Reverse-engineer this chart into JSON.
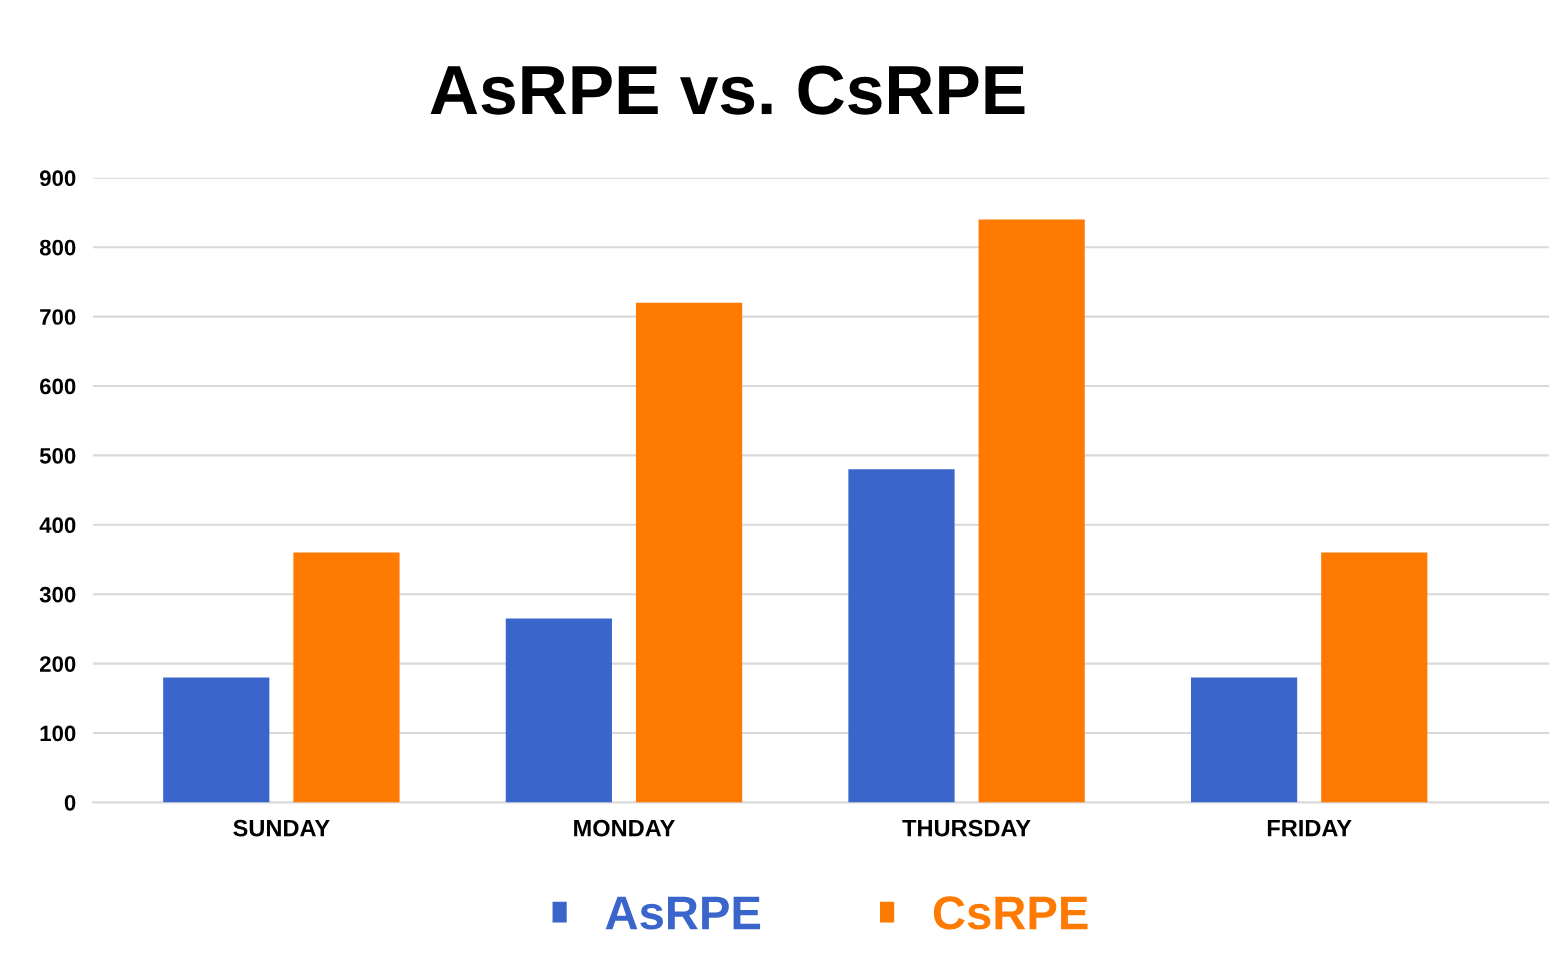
{
  "chart_data": {
    "type": "bar",
    "title": "AsRPE vs. CsRPE",
    "categories": [
      "SUNDAY",
      "MONDAY",
      "THURSDAY",
      "FRIDAY"
    ],
    "series": [
      {
        "name": "AsRPE",
        "color": "#3a66cc",
        "values": [
          180,
          265,
          480,
          180
        ]
      },
      {
        "name": "CsRPE",
        "color": "#ff7a00",
        "values": [
          360,
          720,
          840,
          360
        ]
      }
    ],
    "ylim": [
      0,
      900
    ],
    "yticks": [
      0,
      100,
      200,
      300,
      400,
      500,
      600,
      700,
      800,
      900
    ],
    "grid": "y",
    "legend": "bottom"
  }
}
